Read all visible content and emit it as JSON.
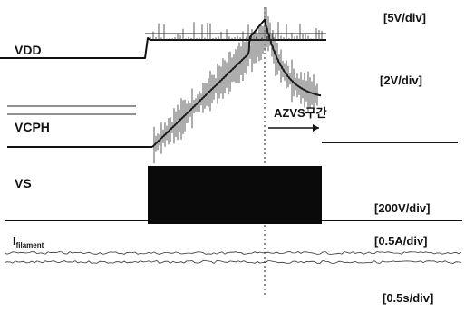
{
  "chart_data": {
    "type": "line",
    "channels": [
      {
        "name": "VDD",
        "scale": "[5V/div]"
      },
      {
        "name": "VCPH",
        "scale": "[2V/div]"
      },
      {
        "name": "VS",
        "scale": "[200V/div]"
      },
      {
        "name": "I",
        "subscript": "filament",
        "scale": "[0.5A/div]"
      }
    ],
    "time_scale": "[0.5s/div]",
    "annotation": "AZVS구간",
    "grid": false,
    "colors": {
      "trace": "#111111",
      "background": "#ffffff"
    }
  }
}
